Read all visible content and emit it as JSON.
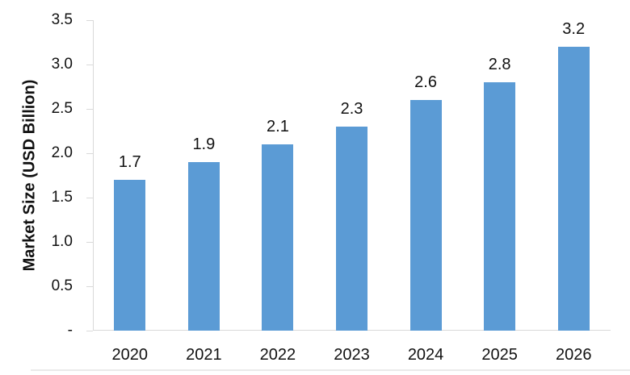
{
  "chart_data": {
    "type": "bar",
    "title": "",
    "categories": [
      "2020",
      "2021",
      "2022",
      "2023",
      "2024",
      "2025",
      "2026"
    ],
    "values": [
      1.7,
      1.9,
      2.1,
      2.3,
      2.6,
      2.8,
      3.2
    ],
    "data_labels": [
      "1.7",
      "1.9",
      "2.1",
      "2.3",
      "2.6",
      "2.8",
      "3.2"
    ],
    "xlabel": "",
    "ylabel": "Market Size (USD Billion)",
    "ylim": [
      0,
      3.5
    ],
    "y_ticks": [
      {
        "value": 3.5,
        "label": "3.5"
      },
      {
        "value": 3.0,
        "label": "3.0"
      },
      {
        "value": 2.5,
        "label": "2.5"
      },
      {
        "value": 2.0,
        "label": "2.0"
      },
      {
        "value": 1.5,
        "label": "1.5"
      },
      {
        "value": 1.0,
        "label": "1.0"
      },
      {
        "value": 0.5,
        "label": "0.5"
      },
      {
        "value": 0.0,
        "label": "-"
      }
    ],
    "grid": false,
    "legend": false,
    "colors": {
      "bar_fill": "#5b9bd5",
      "axis_line": "#d9d9d9",
      "text": "#111111"
    }
  }
}
